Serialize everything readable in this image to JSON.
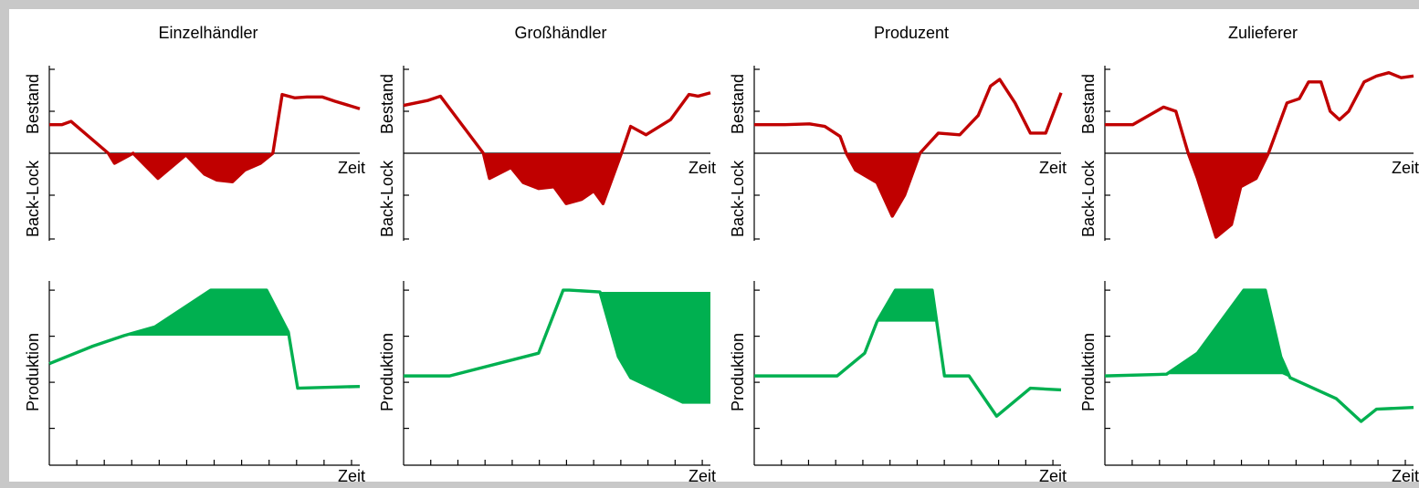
{
  "chart_data": [
    {
      "type": "area",
      "panel": "Einzelhändler",
      "title": "Einzelhändler",
      "top": {
        "ylabel_positive": "Bestand",
        "ylabel_negative": "Back-Lock",
        "xlabel": "Zeit",
        "ylim": [
          -1,
          1
        ],
        "series": [
          {
            "name": "Bestand",
            "color": "#c00000",
            "x": [
              0,
              0.04,
              0.07,
              0.19,
              0.21,
              0.27,
              0.35,
              0.44,
              0.5,
              0.54,
              0.59,
              0.63,
              0.68,
              0.72,
              0.75,
              0.79,
              0.83,
              0.88,
              0.92,
              1.0
            ],
            "y": [
              0.34,
              0.34,
              0.38,
              0.0,
              -0.12,
              0.0,
              -0.3,
              -0.02,
              -0.25,
              -0.32,
              -0.34,
              -0.2,
              -0.12,
              0.0,
              0.7,
              0.66,
              0.67,
              0.67,
              0.62,
              0.53
            ]
          }
        ]
      },
      "bottom": {
        "ylabel": "Produktion",
        "xlabel": "Zeit",
        "ylim": [
          0,
          1
        ],
        "baseline": [
          0.0,
          0.22,
          0.31,
          0.39,
          0.43,
          0.46,
          0.69,
          0.69,
          0.69
        ],
        "series": [
          {
            "name": "Produktion",
            "color": "#00b050",
            "x": [
              0,
              0.14,
              0.24,
              0.34,
              0.52,
              0.7,
              0.77,
              0.8,
              1.0
            ],
            "y": [
              0.58,
              0.68,
              0.74,
              0.79,
              1.0,
              1.0,
              0.76,
              0.44,
              0.45
            ]
          }
        ]
      }
    },
    {
      "type": "area",
      "panel": "Großhändler",
      "title": "Großhändler",
      "top": {
        "ylabel_positive": "Bestand",
        "ylabel_negative": "Back-Lock",
        "xlabel": "Zeit",
        "ylim": [
          -1,
          1
        ],
        "series": [
          {
            "name": "Bestand",
            "color": "#c00000",
            "x": [
              0,
              0.08,
              0.12,
              0.26,
              0.28,
              0.35,
              0.39,
              0.44,
              0.49,
              0.53,
              0.58,
              0.62,
              0.65,
              0.71,
              0.74,
              0.79,
              0.87,
              0.93,
              0.96,
              1.0
            ],
            "y": [
              0.57,
              0.63,
              0.68,
              0.0,
              -0.3,
              -0.17,
              -0.35,
              -0.42,
              -0.4,
              -0.6,
              -0.55,
              -0.45,
              -0.6,
              0.0,
              0.32,
              0.22,
              0.4,
              0.7,
              0.68,
              0.72
            ]
          }
        ]
      },
      "bottom": {
        "ylabel": "Produktion",
        "xlabel": "Zeit",
        "ylim": [
          0,
          1
        ],
        "series": [
          {
            "name": "Produktion",
            "color": "#00b050",
            "x": [
              0,
              0.15,
              0.44,
              0.52,
              0.54,
              0.64,
              0.7,
              0.74,
              0.91,
              1.0
            ],
            "y": [
              0.51,
              0.51,
              0.64,
              1.0,
              1.0,
              0.99,
              0.62,
              0.5,
              0.36,
              0.36
            ]
          }
        ]
      }
    },
    {
      "type": "area",
      "panel": "Produzent",
      "title": "Produzent",
      "top": {
        "ylabel_positive": "Bestand",
        "ylabel_negative": "Back-Lock",
        "xlabel": "Zeit",
        "ylim": [
          -1,
          1
        ],
        "series": [
          {
            "name": "Bestand",
            "color": "#c00000",
            "x": [
              0,
              0.1,
              0.18,
              0.23,
              0.28,
              0.3,
              0.33,
              0.4,
              0.45,
              0.49,
              0.54,
              0.6,
              0.67,
              0.73,
              0.77,
              0.8,
              0.85,
              0.9,
              0.95,
              1.0
            ],
            "y": [
              0.34,
              0.34,
              0.35,
              0.32,
              0.2,
              0.0,
              -0.2,
              -0.35,
              -0.75,
              -0.5,
              0.0,
              0.24,
              0.22,
              0.45,
              0.8,
              0.88,
              0.6,
              0.24,
              0.24,
              0.72
            ]
          }
        ]
      },
      "bottom": {
        "ylabel": "Produktion",
        "xlabel": "Zeit",
        "ylim": [
          0,
          1
        ],
        "series": [
          {
            "name": "Produktion",
            "color": "#00b050",
            "x": [
              0,
              0.15,
              0.27,
              0.36,
              0.4,
              0.46,
              0.58,
              0.62,
              0.7,
              0.79,
              0.9,
              1.0
            ],
            "y": [
              0.51,
              0.51,
              0.51,
              0.64,
              0.82,
              1.0,
              1.0,
              0.51,
              0.51,
              0.28,
              0.44,
              0.43
            ]
          }
        ]
      }
    },
    {
      "type": "area",
      "panel": "Zulieferer",
      "title": "Zulieferer",
      "top": {
        "ylabel_positive": "Bestand",
        "ylabel_negative": "Back-Lock",
        "xlabel": "Zeit",
        "ylim": [
          -1,
          1
        ],
        "series": [
          {
            "name": "Bestand",
            "color": "#c00000",
            "x": [
              0,
              0.09,
              0.19,
              0.23,
              0.27,
              0.3,
              0.36,
              0.41,
              0.44,
              0.49,
              0.53,
              0.59,
              0.63,
              0.66,
              0.7,
              0.73,
              0.76,
              0.79,
              0.84,
              0.88,
              0.92,
              0.96,
              1.0
            ],
            "y": [
              0.34,
              0.34,
              0.55,
              0.5,
              0.0,
              -0.3,
              -1.0,
              -0.85,
              -0.4,
              -0.3,
              0.0,
              0.6,
              0.65,
              0.85,
              0.85,
              0.5,
              0.4,
              0.5,
              0.85,
              0.92,
              0.96,
              0.9,
              0.92
            ]
          }
        ]
      },
      "bottom": {
        "ylabel": "Produktion",
        "xlabel": "Zeit",
        "ylim": [
          0,
          1
        ],
        "series": [
          {
            "name": "Produktion",
            "color": "#00b050",
            "x": [
              0,
              0.2,
              0.3,
              0.45,
              0.52,
              0.57,
              0.6,
              0.75,
              0.83,
              0.88,
              1.0
            ],
            "y": [
              0.51,
              0.52,
              0.64,
              1.0,
              1.0,
              0.62,
              0.5,
              0.38,
              0.25,
              0.32,
              0.33
            ]
          }
        ]
      }
    }
  ]
}
